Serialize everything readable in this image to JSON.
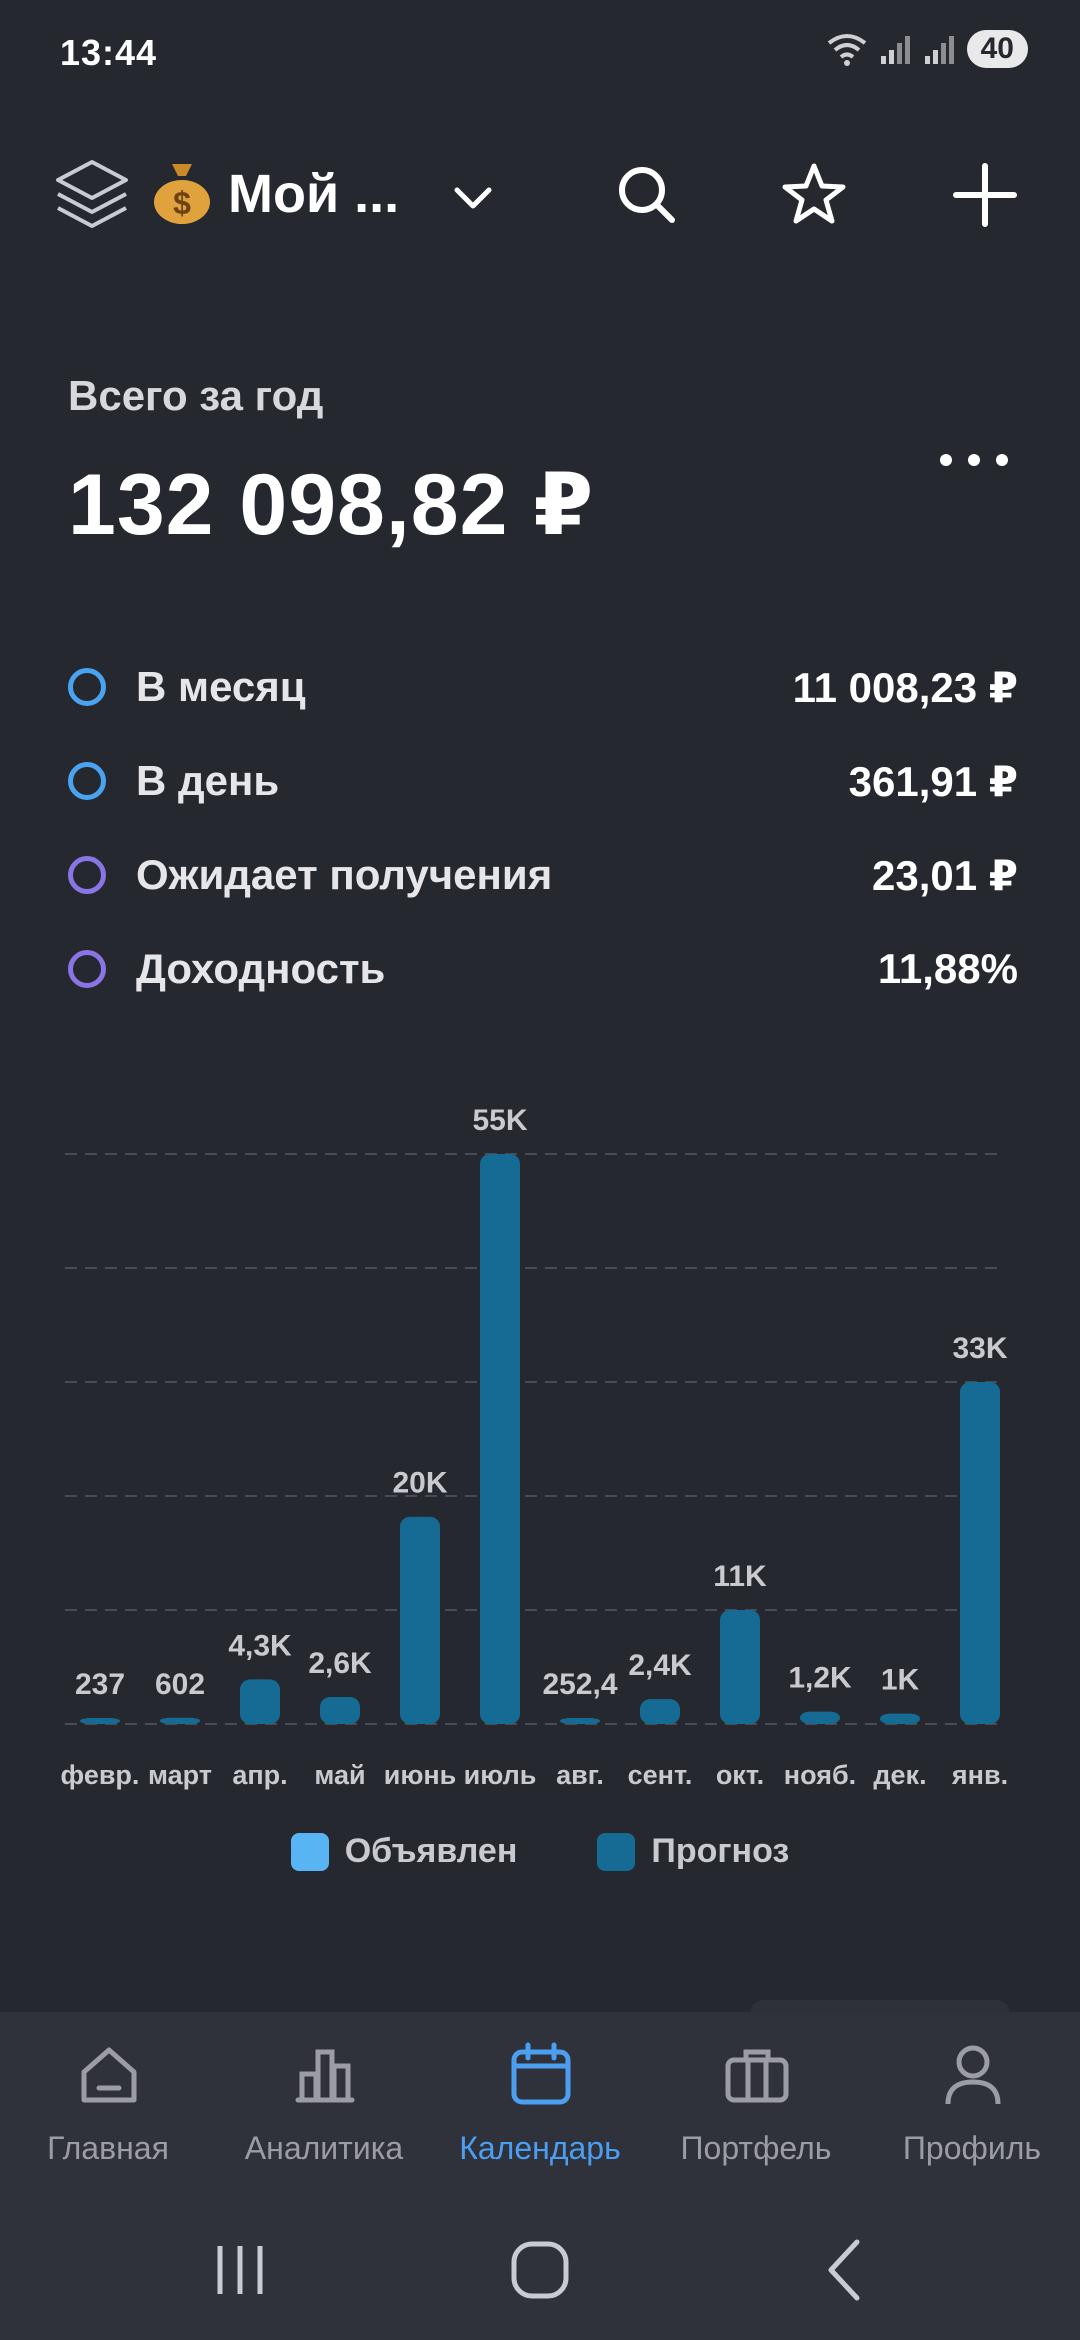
{
  "status": {
    "time": "13:44",
    "battery": "40"
  },
  "header": {
    "title": "Мой ..."
  },
  "summary": {
    "label": "Всего за год",
    "total": "132 098,82 ₽"
  },
  "stats": [
    {
      "label": "В месяц",
      "value": "11 008,23 ₽",
      "ring_color": "#4aa3f0"
    },
    {
      "label": "В день",
      "value": "361,91 ₽",
      "ring_color": "#4aa3f0"
    },
    {
      "label": "Ожидает получения",
      "value": "23,01 ₽",
      "ring_color": "#8a74e6"
    },
    {
      "label": "Доходность",
      "value": "11,88%",
      "ring_color": "#8a74e6"
    }
  ],
  "chart_data": {
    "type": "bar",
    "categories": [
      "февр.",
      "март",
      "апр.",
      "май",
      "июнь",
      "июль",
      "авг.",
      "сент.",
      "окт.",
      "нояб.",
      "дек.",
      "янв."
    ],
    "series": [
      {
        "name": "Прогноз",
        "color": "#156b94",
        "values": [
          237,
          602,
          4300,
          2600,
          20000,
          55000,
          252.4,
          2400,
          11000,
          1200,
          1000,
          33000
        ]
      }
    ],
    "data_labels": [
      "237",
      "602",
      "4,3K",
      "2,6K",
      "20K",
      "55K",
      "252,4",
      "2,4K",
      "11K",
      "1,2K",
      "1K",
      "33K"
    ],
    "ylim": [
      0,
      55000
    ],
    "grid": true
  },
  "legend": [
    {
      "label": "Объявлен",
      "color": "#58b4f2"
    },
    {
      "label": "Прогноз",
      "color": "#156b94"
    }
  ],
  "nav": [
    {
      "label": "Главная",
      "icon": "home-icon"
    },
    {
      "label": "Аналитика",
      "icon": "analytics-icon"
    },
    {
      "label": "Календарь",
      "icon": "calendar-icon",
      "active": true
    },
    {
      "label": "Портфель",
      "icon": "briefcase-icon"
    },
    {
      "label": "Профиль",
      "icon": "profile-icon"
    }
  ],
  "colors": {
    "background": "#262830",
    "accent": "#4c9ef0",
    "nav_bg": "#30323b"
  }
}
